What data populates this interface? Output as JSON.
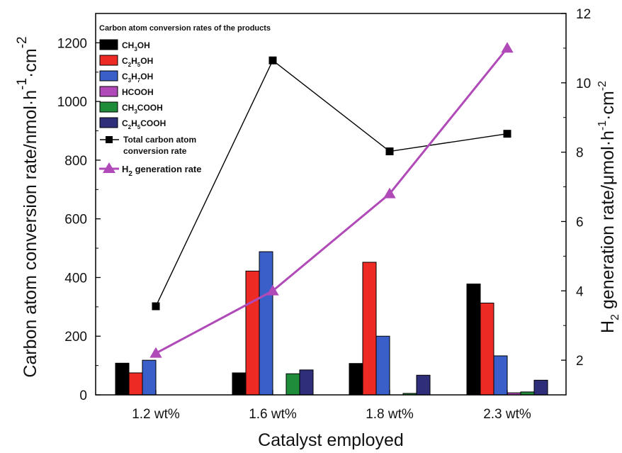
{
  "chart_data": {
    "type": "bar",
    "title": "Carbon atom conversion rates of the products",
    "xlabel": "Catalyst employed",
    "ylabel_left": "Carbon atom conversion rate/nmol·h⁻¹·cm⁻²",
    "ylabel_right": "H₂ generation rate/μmol·h⁻¹·cm⁻²",
    "categories": [
      "1.2 wt%",
      "1.6 wt%",
      "1.8 wt%",
      "2.3 wt%"
    ],
    "ylim_left": [
      0,
      1300
    ],
    "yticks_left": [
      0,
      200,
      400,
      600,
      800,
      1000,
      1200
    ],
    "ylim_right": [
      1,
      12
    ],
    "yticks_right": [
      2,
      4,
      6,
      8,
      10,
      12
    ],
    "bar_series": [
      {
        "name": "CH3OH",
        "color": "#000000",
        "values": [
          108,
          75,
          107,
          378
        ]
      },
      {
        "name": "C2H5OH",
        "color": "#ee2a24",
        "values": [
          75,
          422,
          452,
          313
        ]
      },
      {
        "name": "C3H7OH",
        "color": "#3a5fc8",
        "values": [
          118,
          488,
          200,
          133
        ]
      },
      {
        "name": "HCOOH",
        "color": "#b04ab8",
        "values": [
          0,
          0,
          0,
          7
        ]
      },
      {
        "name": "CH3COOH",
        "color": "#1f8c3a",
        "values": [
          0,
          72,
          5,
          10
        ]
      },
      {
        "name": "C2H5COOH",
        "color": "#2e2e7a",
        "values": [
          0,
          85,
          67,
          50
        ]
      }
    ],
    "line_series": [
      {
        "name": "Total carbon atom conversion rate",
        "axis": "left",
        "color": "#000000",
        "marker": "square",
        "values": [
          302,
          1140,
          830,
          890
        ]
      },
      {
        "name": "H2 generation rate",
        "axis": "right",
        "color": "#b04ab8",
        "marker": "triangle",
        "values": [
          2.2,
          4.0,
          6.8,
          11.0
        ]
      }
    ],
    "legend": {
      "position": "top-left",
      "title": "Carbon atom conversion rates of the products",
      "entries": [
        {
          "sym": "bar",
          "color": "#000000",
          "main": "CH",
          "sub": "3",
          "rest": "OH"
        },
        {
          "sym": "bar",
          "color": "#ee2a24",
          "main": "C",
          "sub": "2",
          "main2": "H",
          "sub2": "5",
          "rest": "OH"
        },
        {
          "sym": "bar",
          "color": "#3a5fc8",
          "main": "C",
          "sub": "3",
          "main2": "H",
          "sub2": "7",
          "rest": "OH"
        },
        {
          "sym": "bar",
          "color": "#b04ab8",
          "main": "HCOOH"
        },
        {
          "sym": "bar",
          "color": "#1f8c3a",
          "main": "CH",
          "sub": "3",
          "rest": "COOH"
        },
        {
          "sym": "bar",
          "color": "#2e2e7a",
          "main": "C",
          "sub": "2",
          "main2": "H",
          "sub2": "5",
          "rest": "COOH"
        }
      ],
      "line_entry_1": [
        "Total carbon atom",
        "conversion rate"
      ],
      "line_entry_2_main": "H",
      "line_entry_2_sub": "2",
      "line_entry_2_rest": " generation rate"
    }
  }
}
